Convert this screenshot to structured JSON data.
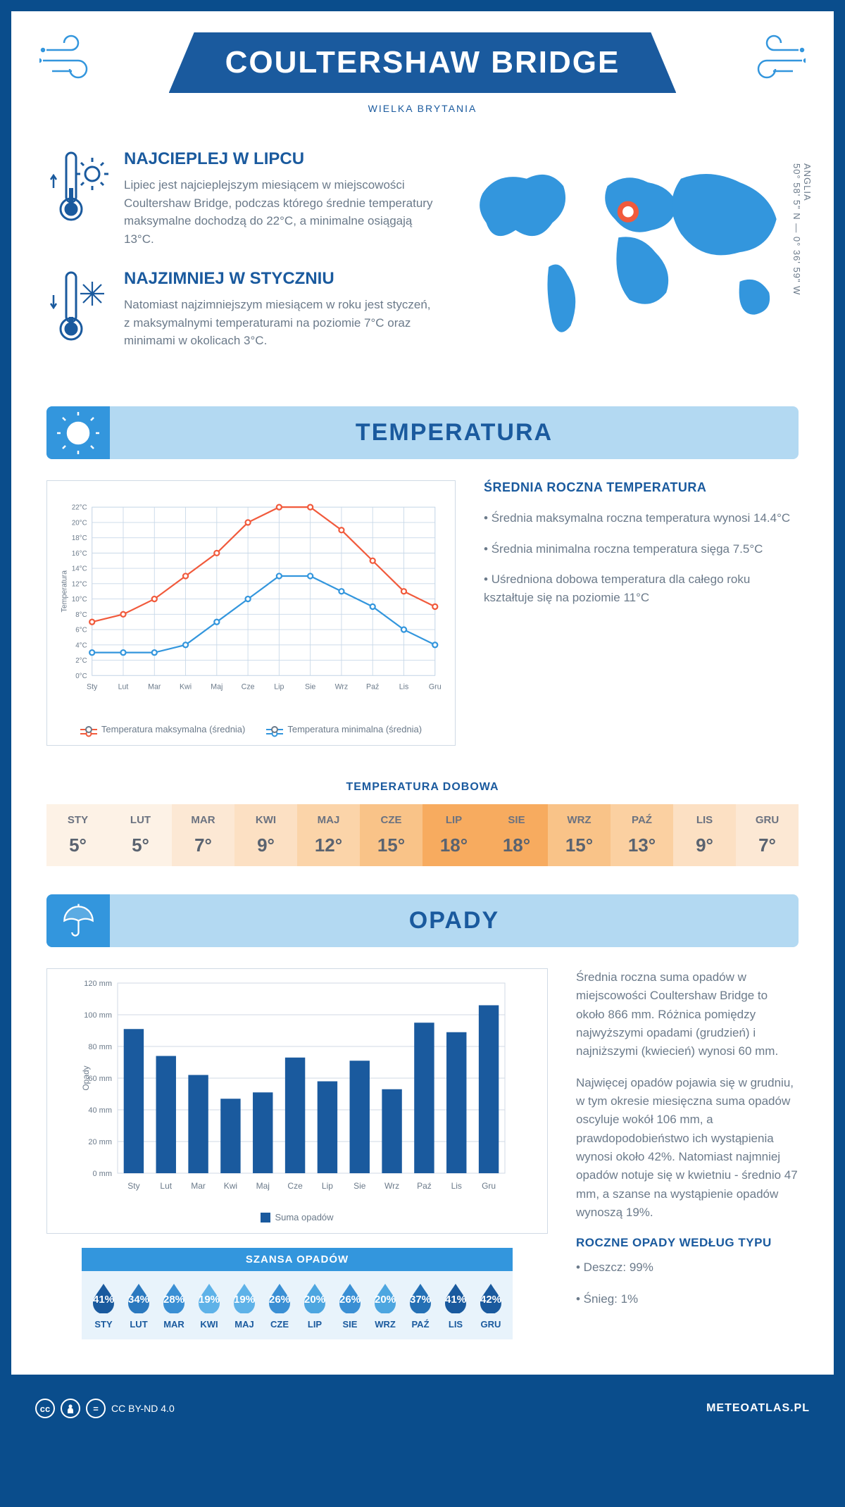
{
  "header": {
    "title": "COULTERSHAW BRIDGE",
    "subtitle": "WIELKA BRYTANIA"
  },
  "intro": {
    "hot": {
      "title": "NAJCIEPLEJ W LIPCU",
      "text": "Lipiec jest najcieplejszym miesiącem w miejscowości Coultershaw Bridge, podczas którego średnie temperatury maksymalne dochodzą do 22°C, a minimalne osiągają 13°C."
    },
    "cold": {
      "title": "NAJZIMNIEJ W STYCZNIU",
      "text": "Natomiast najzimniejszym miesiącem w roku jest styczeń, z maksymalnymi temperaturami na poziomie 7°C oraz minimami w okolicach 3°C."
    },
    "coords": "50° 58' 5\" N — 0° 36' 59\" W",
    "region": "ANGLIA"
  },
  "months": [
    "Sty",
    "Lut",
    "Mar",
    "Kwi",
    "Maj",
    "Cze",
    "Lip",
    "Sie",
    "Wrz",
    "Paź",
    "Lis",
    "Gru"
  ],
  "months_upper": [
    "STY",
    "LUT",
    "MAR",
    "KWI",
    "MAJ",
    "CZE",
    "LIP",
    "SIE",
    "WRZ",
    "PAŹ",
    "LIS",
    "GRU"
  ],
  "temperature": {
    "banner": "TEMPERATURA",
    "chart": {
      "type": "line",
      "ylabel": "Temperatura",
      "ylim": [
        0,
        22
      ],
      "ytick_step": 2,
      "grid_color": "#c8d8e8",
      "border_color": "#d0dae5",
      "series": [
        {
          "name": "Temperatura maksymalna (średnia)",
          "color": "#f15a3c",
          "values": [
            7,
            8,
            10,
            13,
            16,
            20,
            22,
            22,
            19,
            15,
            11,
            9
          ]
        },
        {
          "name": "Temperatura minimalna (średnia)",
          "color": "#3396dd",
          "values": [
            3,
            3,
            3,
            4,
            7,
            10,
            13,
            13,
            11,
            9,
            6,
            4
          ]
        }
      ],
      "xlabels": [
        "Sty",
        "Lut",
        "Mar",
        "Kwi",
        "Maj",
        "Cze",
        "Lip",
        "Sie",
        "Wrz",
        "Paź",
        "Lis",
        "Gru"
      ]
    },
    "summary": {
      "title": "ŚREDNIA ROCZNA TEMPERATURA",
      "b1": "• Średnia maksymalna roczna temperatura wynosi 14.4°C",
      "b2": "• Średnia minimalna roczna temperatura sięga 7.5°C",
      "b3": "• Uśredniona dobowa temperatura dla całego roku kształtuje się na poziomie 11°C"
    },
    "daily": {
      "title": "TEMPERATURA DOBOWA",
      "values": [
        "5°",
        "5°",
        "7°",
        "9°",
        "12°",
        "15°",
        "18°",
        "18°",
        "15°",
        "13°",
        "9°",
        "7°"
      ],
      "colors": [
        "#fdf2e6",
        "#fdf2e6",
        "#fce8d4",
        "#fce0c3",
        "#fbd4a9",
        "#f9c388",
        "#f7ab5f",
        "#f7ab5f",
        "#f9c388",
        "#fbd0a1",
        "#fce0c3",
        "#fce8d4"
      ]
    }
  },
  "precip": {
    "banner": "OPADY",
    "chart": {
      "type": "bar",
      "ylabel": "Opady",
      "ylim": [
        0,
        120
      ],
      "ytick_step": 20,
      "bar_color": "#1a5a9e",
      "grid_color": "#d0dae5",
      "values": [
        91,
        74,
        62,
        47,
        51,
        73,
        58,
        71,
        53,
        95,
        89,
        106
      ],
      "xlabels": [
        "Sty",
        "Lut",
        "Mar",
        "Kwi",
        "Maj",
        "Cze",
        "Lip",
        "Sie",
        "Wrz",
        "Paź",
        "Lis",
        "Gru"
      ],
      "legend": "Suma opadów"
    },
    "text": {
      "p1": "Średnia roczna suma opadów w miejscowości Coultershaw Bridge to około 866 mm. Różnica pomiędzy najwyższymi opadami (grudzień) i najniższymi (kwiecień) wynosi 60 mm.",
      "p2": "Najwięcej opadów pojawia się w grudniu, w tym okresie miesięczna suma opadów oscyluje wokół 106 mm, a prawdopodobieństwo ich wystąpienia wynosi około 42%. Natomiast najmniej opadów notuje się w kwietniu - średnio 47 mm, a szanse na wystąpienie opadów wynoszą 19%."
    },
    "chance": {
      "title": "SZANSA OPADÓW",
      "values": [
        "41%",
        "34%",
        "28%",
        "19%",
        "19%",
        "26%",
        "20%",
        "26%",
        "20%",
        "37%",
        "41%",
        "42%"
      ],
      "colors": [
        "#1a5a9e",
        "#2b79bf",
        "#3a8fd4",
        "#5eb2e8",
        "#5eb2e8",
        "#3a8fd4",
        "#4da6e0",
        "#3a8fd4",
        "#4da6e0",
        "#2470b5",
        "#1a5a9e",
        "#1a5a9e"
      ]
    },
    "bytype": {
      "title": "ROCZNE OPADY WEDŁUG TYPU",
      "b1": "• Deszcz: 99%",
      "b2": "• Śnieg: 1%"
    }
  },
  "footer": {
    "license": "CC BY-ND 4.0",
    "site": "METEOATLAS.PL"
  }
}
